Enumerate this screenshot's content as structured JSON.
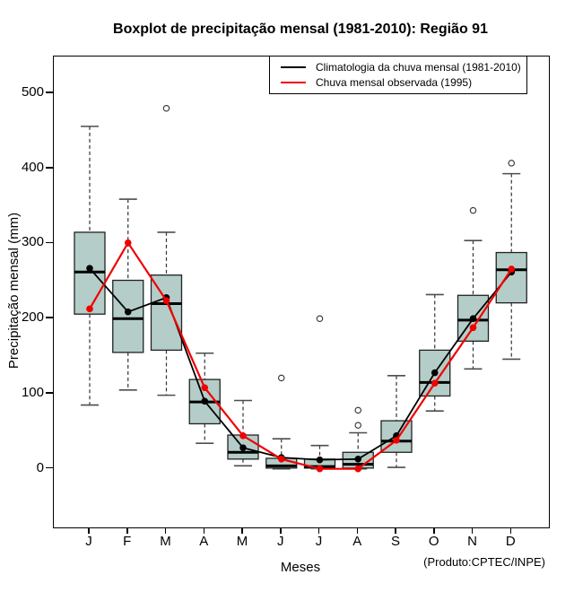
{
  "footer_note": "(Produto:CPTEC/INPE)",
  "legend": {
    "items": [
      {
        "label": "Climatologia da chuva mensal (1981-2010)",
        "color": "#000000"
      },
      {
        "label": "Chuva mensal observada (1995)",
        "color": "#f00000"
      }
    ]
  },
  "chart_data": {
    "type": "boxplot",
    "title": "Boxplot de precipitação mensal (1981-2010): Região 91",
    "xlabel": "Meses",
    "ylabel": "Precipitação mensal (mm)",
    "ylim": [
      -78,
      549
    ],
    "yticks": [
      0,
      100,
      200,
      300,
      400,
      500
    ],
    "grid": false,
    "legend_position": "top-right",
    "box_fill": "#b4cdc8",
    "categories": [
      "J",
      "F",
      "M",
      "A",
      "M",
      "J",
      "J",
      "A",
      "S",
      "O",
      "N",
      "D"
    ],
    "boxes": [
      {
        "month": "J",
        "low": 85,
        "q1": 206,
        "median": 262,
        "q3": 315,
        "high": 456,
        "outliers": []
      },
      {
        "month": "F",
        "low": 105,
        "q1": 155,
        "median": 200,
        "q3": 251,
        "high": 359,
        "outliers": []
      },
      {
        "month": "M",
        "low": 98,
        "q1": 158,
        "median": 220,
        "q3": 258,
        "high": 315,
        "outliers": [
          480
        ]
      },
      {
        "month": "A",
        "low": 34,
        "q1": 60,
        "median": 89,
        "q3": 119,
        "high": 154,
        "outliers": []
      },
      {
        "month": "M",
        "low": 4,
        "q1": 13,
        "median": 22,
        "q3": 45,
        "high": 91,
        "outliers": []
      },
      {
        "month": "J",
        "low": 0,
        "q1": 1,
        "median": 4,
        "q3": 14,
        "high": 40,
        "outliers": [
          121
        ]
      },
      {
        "month": "J",
        "low": 0,
        "q1": 1,
        "median": 3,
        "q3": 13,
        "high": 31,
        "outliers": [
          200
        ]
      },
      {
        "month": "A",
        "low": 0,
        "q1": 1,
        "median": 6,
        "q3": 22,
        "high": 48,
        "outliers": [
          78,
          58
        ]
      },
      {
        "month": "S",
        "low": 2,
        "q1": 22,
        "median": 37,
        "q3": 64,
        "high": 124,
        "outliers": []
      },
      {
        "month": "O",
        "low": 77,
        "q1": 97,
        "median": 115,
        "q3": 158,
        "high": 232,
        "outliers": []
      },
      {
        "month": "N",
        "low": 133,
        "q1": 170,
        "median": 198,
        "q3": 231,
        "high": 304,
        "outliers": [
          344
        ]
      },
      {
        "month": "D",
        "low": 146,
        "q1": 221,
        "median": 265,
        "q3": 288,
        "high": 393,
        "outliers": [
          407
        ]
      }
    ],
    "series": [
      {
        "name": "Climatologia da chuva mensal (1981-2010)",
        "color": "#000000",
        "values": [
          267,
          209,
          228,
          90,
          28,
          15,
          12,
          13,
          44,
          128,
          200,
          262
        ]
      },
      {
        "name": "Chuva mensal observada (1995)",
        "color": "#f00000",
        "values": [
          213,
          301,
          224,
          108,
          44,
          13,
          0,
          0,
          38,
          114,
          188,
          266
        ]
      }
    ]
  }
}
